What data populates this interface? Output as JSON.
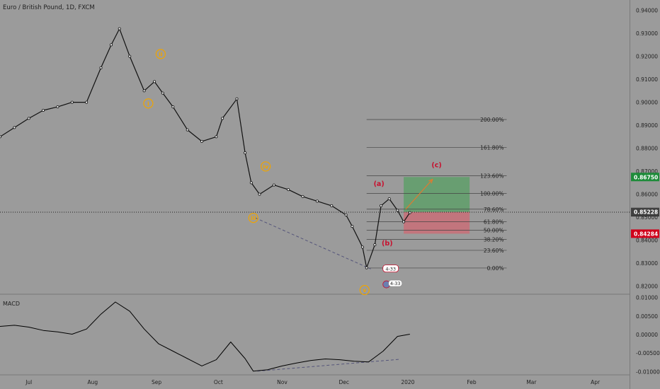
{
  "symbol_title": "Euro / British Pound, 1D, FXCM",
  "macd_label": "MACD",
  "colors": {
    "background": "#9b9b9b",
    "axis_text": "#222222",
    "wave_orange": "#f0a500",
    "wave_red": "#c8102e",
    "fib_line": "#444444",
    "trendline": "#55557a",
    "profit_zone": "#5f9f6a",
    "loss_zone": "#c96e78",
    "macd_line": "#000000",
    "price_tag_green": "#1e8c3a",
    "price_tag_red": "#d0021b",
    "price_tag_dark": "#404040",
    "price_tag_black": "#111111"
  },
  "axes": {
    "x_ticks": [
      "Jul",
      "Aug",
      "Sep",
      "Oct",
      "Nov",
      "Dec",
      "2020",
      "Feb",
      "Mar",
      "Apr"
    ],
    "price_ticks": [
      "0.94000",
      "0.93000",
      "0.92000",
      "0.91000",
      "0.90000",
      "0.89000",
      "0.88000",
      "0.87000",
      "0.86000",
      "0.85000",
      "0.84000",
      "0.83000",
      "0.82000"
    ],
    "macd_ticks": [
      "0.01000",
      "0.00500",
      "0.00000",
      "-0.00500",
      "-0.01000"
    ]
  },
  "price_tags": [
    {
      "label": "0.86750",
      "value": 0.8675,
      "color": "#1e8c3a"
    },
    {
      "label": "0.85218",
      "value": 0.85218,
      "color": "#111111"
    },
    {
      "label": "0.85228",
      "value": 0.85228,
      "color": "#404040"
    },
    {
      "label": "0.84284",
      "value": 0.84284,
      "color": "#d0021b"
    }
  ],
  "annotations": {
    "wave_labels": [
      {
        "text": "i",
        "date": "2019-08-28",
        "price": 0.8995,
        "style": "orange"
      },
      {
        "text": "ii",
        "date": "2019-09-03",
        "price": 0.921,
        "style": "orange"
      },
      {
        "text": "iii",
        "date": "2019-10-18",
        "price": 0.8497,
        "style": "orange"
      },
      {
        "text": "iv",
        "date": "2019-10-24",
        "price": 0.8721,
        "style": "orange"
      },
      {
        "text": "v",
        "date": "2019-12-11",
        "price": 0.8183,
        "style": "orange"
      },
      {
        "text": "(a)",
        "date": "2019-12-18",
        "price": 0.8645,
        "style": "red"
      },
      {
        "text": "(b)",
        "date": "2019-12-22",
        "price": 0.8387,
        "style": "red"
      },
      {
        "text": "(c)",
        "date": "2020-01-15",
        "price": 0.8727,
        "style": "red"
      }
    ],
    "badge_1": "4-33",
    "badge_2": "4-33"
  },
  "fib_levels": [
    {
      "label": "200.00%",
      "price": 0.8925
    },
    {
      "label": "161.80%",
      "price": 0.8804
    },
    {
      "label": "123.60%",
      "price": 0.868
    },
    {
      "label": "100.00%",
      "price": 0.8603
    },
    {
      "label": "78.60%",
      "price": 0.8535
    },
    {
      "label": "61.80%",
      "price": 0.848
    },
    {
      "label": "50.00%",
      "price": 0.8443
    },
    {
      "label": "38.20%",
      "price": 0.8403
    },
    {
      "label": "23.60%",
      "price": 0.8356
    },
    {
      "label": "0.00%",
      "price": 0.8279
    }
  ],
  "chart_data": {
    "type": "line",
    "title": "Euro / British Pound, 1D, FXCM",
    "xlabel": "",
    "ylabel": "",
    "x_range": [
      "2019-06-17",
      "2020-04-18"
    ],
    "ylim": [
      0.8165,
      0.9445
    ],
    "price_series": {
      "name": "Euro / British Pound",
      "dates": [
        "2019-06-17",
        "2019-06-24",
        "2019-07-01",
        "2019-07-08",
        "2019-07-15",
        "2019-07-22",
        "2019-07-29",
        "2019-08-05",
        "2019-08-10",
        "2019-08-14",
        "2019-08-19",
        "2019-08-26",
        "2019-08-31",
        "2019-09-04",
        "2019-09-09",
        "2019-09-16",
        "2019-09-23",
        "2019-09-30",
        "2019-10-03",
        "2019-10-10",
        "2019-10-14",
        "2019-10-17",
        "2019-10-21",
        "2019-10-28",
        "2019-11-04",
        "2019-11-11",
        "2019-11-18",
        "2019-11-25",
        "2019-12-02",
        "2019-12-05",
        "2019-12-10",
        "2019-12-12",
        "2019-12-16",
        "2019-12-19",
        "2019-12-23",
        "2019-12-27",
        "2019-12-30",
        "2020-01-02"
      ],
      "close": [
        0.885,
        0.889,
        0.893,
        0.8965,
        0.898,
        0.9,
        0.9,
        0.915,
        0.925,
        0.932,
        0.92,
        0.905,
        0.909,
        0.904,
        0.898,
        0.888,
        0.883,
        0.885,
        0.893,
        0.9015,
        0.878,
        0.865,
        0.86,
        0.864,
        0.862,
        0.859,
        0.857,
        0.855,
        0.851,
        0.846,
        0.837,
        0.828,
        0.838,
        0.855,
        0.858,
        0.853,
        0.848,
        0.852
      ]
    },
    "macd_series": {
      "name": "MACD",
      "ylim": [
        -0.0109,
        0.0109
      ],
      "dates": [
        "2019-06-17",
        "2019-06-24",
        "2019-07-01",
        "2019-07-08",
        "2019-07-15",
        "2019-07-22",
        "2019-07-29",
        "2019-08-05",
        "2019-08-12",
        "2019-08-19",
        "2019-08-26",
        "2019-09-02",
        "2019-09-09",
        "2019-09-16",
        "2019-09-23",
        "2019-09-30",
        "2019-10-07",
        "2019-10-14",
        "2019-10-18",
        "2019-10-25",
        "2019-11-01",
        "2019-11-08",
        "2019-11-15",
        "2019-11-22",
        "2019-11-29",
        "2019-12-06",
        "2019-12-13",
        "2019-12-20",
        "2019-12-27",
        "2020-01-02"
      ],
      "values": [
        0.0022,
        0.0025,
        0.002,
        0.0011,
        0.0007,
        0.0001,
        0.0015,
        0.0055,
        0.0088,
        0.0063,
        0.0015,
        -0.0025,
        -0.0045,
        -0.0065,
        -0.0085,
        -0.0068,
        -0.002,
        -0.0065,
        -0.0099,
        -0.0095,
        -0.0085,
        -0.0077,
        -0.007,
        -0.0066,
        -0.0068,
        -0.0072,
        -0.0074,
        -0.0045,
        -0.0005,
        0.0001
      ]
    }
  }
}
